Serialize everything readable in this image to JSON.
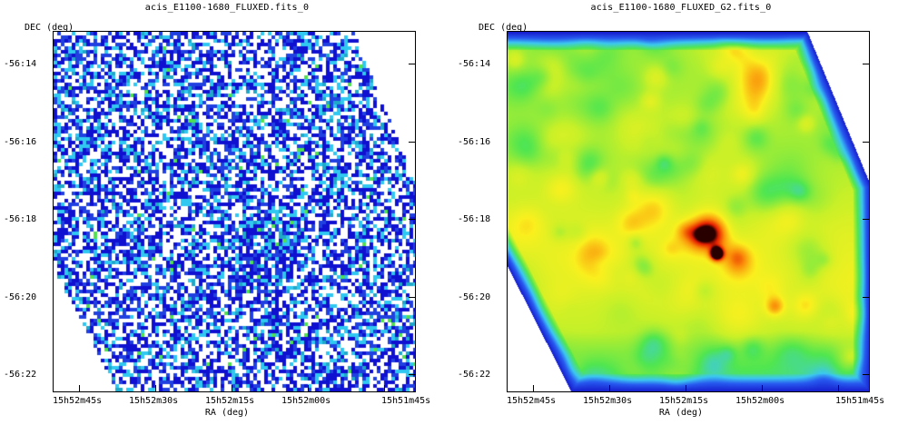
{
  "left_panel": {
    "title": "acis_E1100-1680_FLUXED.fits_0",
    "y_axis_label": "DEC (deg)",
    "x_axis_label": "RA (deg)",
    "image_style": "sparse-counts"
  },
  "right_panel": {
    "title": "acis_E1100-1680_FLUXED_G2.fits_0",
    "y_axis_label": "DEC (deg)",
    "x_axis_label": "RA (deg)",
    "image_style": "smoothed"
  },
  "y_ticks": [
    "-56:14",
    "-56:16",
    "-56:18",
    "-56:20",
    "-56:22"
  ],
  "x_ticks": [
    "15h52m45s",
    "15h52m30s",
    "15h52m15s",
    "15h52m00s",
    "15h51m45s"
  ],
  "colors": {
    "background": "#ffffff",
    "low": "#1010d0",
    "mid_low": "#30c8f0",
    "mid": "#50e050",
    "mid_high": "#f0f020",
    "high": "#f04000",
    "peak": "#200000"
  }
}
